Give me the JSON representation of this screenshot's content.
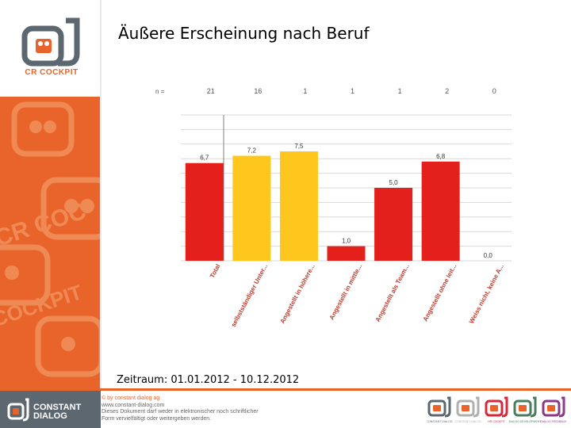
{
  "page": {
    "title": "Äußere Erscheinung nach Beruf",
    "period": "Zeitraum: 01.01.2012 - 10.12.2012"
  },
  "logo": {
    "label": "CR COCKPIT",
    "icon": "cr-cockpit-logo-icon"
  },
  "footer": {
    "brand_line1": "CONSTANT",
    "brand_line2": "DIALOG",
    "copyright": "© by constant dialog ag",
    "website": "www.constant-dialog.com",
    "notice1": "Dieses Dokument darf weder in elektronischer noch schriftlicher",
    "notice2": "Form vervielfältigt oder weitergeben werden.",
    "logos": [
      {
        "label": "CONSTANT DIALOG",
        "color": "#5d6770"
      },
      {
        "label": "CONSTANT DIALOG",
        "color": "#b0b0b0"
      },
      {
        "label": "HR COCKPIT",
        "color": "#d9263a"
      },
      {
        "label": "DIALOG DEVELOPMENT",
        "color": "#4a7c5e"
      },
      {
        "label": "DIALOG FEEDBACK",
        "color": "#8b3a8b"
      }
    ]
  },
  "colors": {
    "accent": "#e8642a",
    "bar_red": "#e3201b",
    "bar_yellow": "#ffc61e",
    "footer_gray": "#5d6770"
  },
  "chart_data": {
    "type": "bar",
    "n_label": "n =",
    "categories": [
      "Total",
      "selbstständiger Unter...",
      "Angestellt in höhere...",
      "Angestellt in mittle...",
      "Angestellt als Team...",
      "Angestellt ohne leit...",
      "Weiss nicht, keine A..."
    ],
    "values": [
      6.7,
      7.2,
      7.5,
      1.0,
      5.0,
      6.8,
      0.0
    ],
    "value_labels": [
      "6,7",
      "7,2",
      "7,5",
      "1,0",
      "5,0",
      "6,8",
      "0,0"
    ],
    "n": [
      "21",
      "16",
      "1",
      "1",
      "1",
      "2",
      "0"
    ],
    "bar_colors": [
      "#e3201b",
      "#ffc61e",
      "#ffc61e",
      "#e3201b",
      "#e3201b",
      "#e3201b",
      "#e3201b"
    ],
    "ylim": [
      0,
      10
    ],
    "grid": true,
    "title": "",
    "xlabel": "",
    "ylabel": ""
  }
}
